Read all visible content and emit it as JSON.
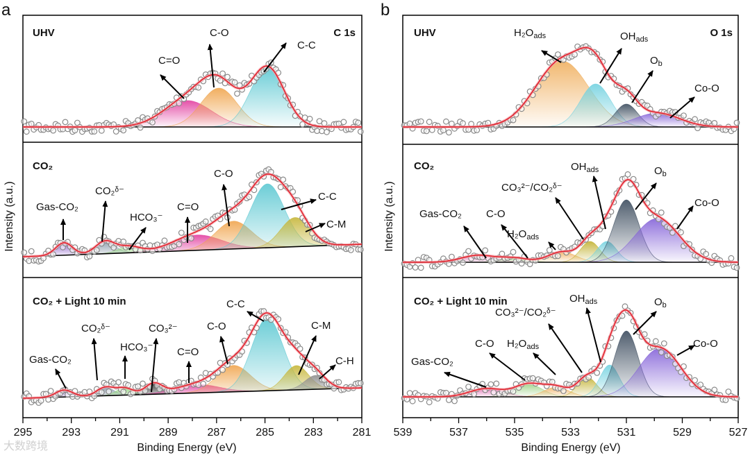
{
  "figure": {
    "panel_a_letter": "a",
    "panel_b_letter": "b",
    "wm": "大数跨境"
  },
  "chart_data": [
    {
      "type": "line",
      "title": "C 1s",
      "panel": "a",
      "xlabel": "Binding Energy (eV)",
      "ylabel": "Intensity (a.u.)",
      "xlim": [
        295,
        281
      ],
      "xticks": [
        "295",
        "293",
        "291",
        "289",
        "287",
        "285",
        "283",
        "281"
      ],
      "grid": false,
      "subplots": [
        {
          "condition": "UHV",
          "background": [
            0,
            0
          ],
          "peaks": [
            {
              "name": "C=O",
              "center": 288.2,
              "height": 38,
              "sigma": 1.0,
              "color": "#e23fa0"
            },
            {
              "name": "C-O",
              "center": 286.9,
              "height": 56,
              "sigma": 0.75,
              "color": "#f0a54e"
            },
            {
              "name": "C-C",
              "center": 284.9,
              "height": 86,
              "sigma": 0.7,
              "color": "#5cc8d2"
            }
          ],
          "labels": [
            {
              "text": "C=O"
            },
            {
              "text": "C-O"
            },
            {
              "text": "C-C"
            }
          ]
        },
        {
          "condition": "CO₂",
          "background": [
            0,
            18
          ],
          "peaks": [
            {
              "name": "Gas-CO2",
              "center": 293.3,
              "height": 18,
              "sigma": 0.35,
              "color": "#8a5cc8"
            },
            {
              "name": "CO2δ-",
              "center": 291.6,
              "height": 18,
              "sigma": 0.4,
              "color": "#8596a8"
            },
            {
              "name": "HCO3-",
              "center": 290.6,
              "height": 9,
              "sigma": 0.45,
              "color": "#92d47e"
            },
            {
              "name": "C=O",
              "center": 287.8,
              "height": 22,
              "sigma": 1.0,
              "color": "#e23fa0"
            },
            {
              "name": "C-O",
              "center": 286.3,
              "height": 40,
              "sigma": 0.75,
              "color": "#f0a54e"
            },
            {
              "name": "C-C",
              "center": 284.9,
              "height": 92,
              "sigma": 0.7,
              "color": "#5cc8d2"
            },
            {
              "name": "C-M",
              "center": 283.75,
              "height": 42,
              "sigma": 0.6,
              "color": "#c6b63a"
            }
          ],
          "labels": [
            {
              "text": "Gas-CO₂"
            },
            {
              "text": "CO₂ᵟ⁻"
            },
            {
              "text": "HCO₃⁻"
            },
            {
              "text": "C=O"
            },
            {
              "text": "C-O"
            },
            {
              "text": "C-C"
            },
            {
              "text": "C-M"
            }
          ]
        },
        {
          "condition": "CO₂ + Light 10 min",
          "background": [
            0,
            15
          ],
          "peaks": [
            {
              "name": "Gas-CO2",
              "center": 293.3,
              "height": 10,
              "sigma": 0.35,
              "color": "#8a5cc8"
            },
            {
              "name": "CO2δ-",
              "center": 291.6,
              "height": 12,
              "sigma": 0.35,
              "color": "#8596a8"
            },
            {
              "name": "HCO3-",
              "center": 290.8,
              "height": 10,
              "sigma": 0.35,
              "color": "#92d47e"
            },
            {
              "name": "CO3 2-",
              "center": 289.6,
              "height": 15,
              "sigma": 0.35,
              "color": "#2e2e2e"
            },
            {
              "name": "C=O",
              "center": 287.8,
              "height": 12,
              "sigma": 0.9,
              "color": "#e23fa0"
            },
            {
              "name": "C-O",
              "center": 286.3,
              "height": 38,
              "sigma": 0.7,
              "color": "#f0a54e"
            },
            {
              "name": "C-C",
              "center": 284.9,
              "height": 105,
              "sigma": 0.65,
              "color": "#5cc8d2"
            },
            {
              "name": "C-M",
              "center": 283.7,
              "height": 35,
              "sigma": 0.5,
              "color": "#c6b63a"
            },
            {
              "name": "C-H",
              "center": 282.9,
              "height": 20,
              "sigma": 0.45,
              "color": "#8e8e8e"
            }
          ],
          "labels": [
            {
              "text": "Gas-CO₂"
            },
            {
              "text": "CO₂ᵟ⁻"
            },
            {
              "text": "HCO₃⁻"
            },
            {
              "text": "CO₃²⁻"
            },
            {
              "text": "C=O"
            },
            {
              "text": "C-O"
            },
            {
              "text": "C-C"
            },
            {
              "text": "C-M"
            },
            {
              "text": "C-H"
            }
          ]
        }
      ]
    },
    {
      "type": "line",
      "title": "O 1s",
      "panel": "b",
      "xlabel": "Binding Energy (eV)",
      "ylabel": "Intensity (a.u.)",
      "xlim": [
        539,
        527
      ],
      "xticks": [
        "539",
        "537",
        "535",
        "533",
        "531",
        "529",
        "527"
      ],
      "grid": false,
      "subplots": [
        {
          "condition": "UHV",
          "background": [
            0,
            0
          ],
          "peaks": [
            {
              "name": "H2Oads",
              "center": 533.3,
              "height": 95,
              "sigma": 0.95,
              "color": "#f0b060"
            },
            {
              "name": "OHads",
              "center": 532.1,
              "height": 62,
              "sigma": 0.55,
              "color": "#74d2e0"
            },
            {
              "name": "Ob",
              "center": 531.0,
              "height": 33,
              "sigma": 0.4,
              "color": "#3c4c5e"
            },
            {
              "name": "Co-O",
              "center": 529.9,
              "height": 20,
              "sigma": 0.8,
              "color": "#8462d8"
            }
          ],
          "labels": [
            {
              "text": "H₂O",
              "sub": "ads"
            },
            {
              "text": "OH",
              "sub": "ads"
            },
            {
              "text": "O",
              "sub": "b"
            },
            {
              "text": "Co-O"
            }
          ]
        },
        {
          "condition": "CO₂",
          "background": [
            0,
            0
          ],
          "peaks": [
            {
              "name": "Gas-CO2",
              "center": 536.3,
              "height": 10,
              "sigma": 0.6,
              "color": "#e070b4"
            },
            {
              "name": "C-O",
              "center": 535.0,
              "height": 6,
              "sigma": 0.5,
              "color": "#a0d48a"
            },
            {
              "name": "H2Oads",
              "center": 533.3,
              "height": 15,
              "sigma": 0.5,
              "color": "#f0b060"
            },
            {
              "name": "CO3 2-/CO2δ-",
              "center": 532.3,
              "height": 30,
              "sigma": 0.35,
              "color": "#c2b232"
            },
            {
              "name": "OHads",
              "center": 531.7,
              "height": 30,
              "sigma": 0.35,
              "color": "#74d2e0"
            },
            {
              "name": "Ob",
              "center": 531.0,
              "height": 90,
              "sigma": 0.45,
              "color": "#3c4c5e"
            },
            {
              "name": "Co-O",
              "center": 529.9,
              "height": 63,
              "sigma": 0.8,
              "color": "#8462d8"
            }
          ],
          "labels": [
            {
              "text": "Gas-CO₂"
            },
            {
              "text": "C-O"
            },
            {
              "text": "H₂O",
              "sub": "ads"
            },
            {
              "text": "CO₃²⁻/CO₂ᵟ⁻"
            },
            {
              "text": "OH",
              "sub": "ads"
            },
            {
              "text": "O",
              "sub": "b"
            },
            {
              "text": "Co-O"
            }
          ]
        },
        {
          "condition": "CO₂ + Light 10 min",
          "background": [
            0,
            0
          ],
          "peaks": [
            {
              "name": "Gas-CO2",
              "center": 536.0,
              "height": 12,
              "sigma": 0.6,
              "color": "#e070b4"
            },
            {
              "name": "C-O",
              "center": 534.5,
              "height": 18,
              "sigma": 0.5,
              "color": "#a0d48a"
            },
            {
              "name": "H2Oads",
              "center": 533.5,
              "height": 14,
              "sigma": 0.45,
              "color": "#f0b060"
            },
            {
              "name": "CO3 2-/CO2δ-",
              "center": 532.4,
              "height": 28,
              "sigma": 0.35,
              "color": "#c2b232"
            },
            {
              "name": "OHads",
              "center": 531.6,
              "height": 46,
              "sigma": 0.35,
              "color": "#74d2e0"
            },
            {
              "name": "Ob",
              "center": 531.0,
              "height": 95,
              "sigma": 0.42,
              "color": "#3c4c5e"
            },
            {
              "name": "Co-O",
              "center": 529.8,
              "height": 70,
              "sigma": 0.75,
              "color": "#8462d8"
            }
          ],
          "labels": [
            {
              "text": "Gas-CO₂"
            },
            {
              "text": "C-O"
            },
            {
              "text": "H₂O",
              "sub": "ads"
            },
            {
              "text": "CO₃²⁻/CO₂ᵟ⁻"
            },
            {
              "text": "OH",
              "sub": "ads"
            },
            {
              "text": "O",
              "sub": "b"
            },
            {
              "text": "Co-O"
            }
          ]
        }
      ]
    }
  ]
}
